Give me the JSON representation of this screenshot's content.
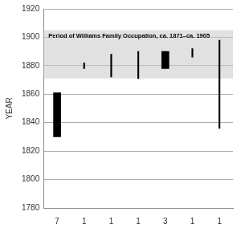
{
  "chart_data": {
    "type": "bar",
    "categories": [
      "7",
      "1",
      "1",
      "1",
      "3",
      "1",
      "1"
    ],
    "values": [
      [
        1830,
        1861
      ],
      [
        1878,
        1882
      ],
      [
        1872,
        1888
      ],
      [
        1871,
        1890
      ],
      [
        1878,
        1890
      ],
      [
        1886,
        1892
      ],
      [
        1836,
        1898
      ]
    ],
    "color": "#000000",
    "y_label": "YEAR",
    "ylim": [
      1780,
      1920
    ],
    "yticks": [
      1780,
      1800,
      1820,
      1840,
      1860,
      1880,
      1900,
      1920
    ],
    "grid": true,
    "annotations": [
      {
        "text": "Period of Williams Family Occupation, ca. 1871–ca. 1905",
        "range": [
          1871,
          1905
        ]
      }
    ]
  }
}
